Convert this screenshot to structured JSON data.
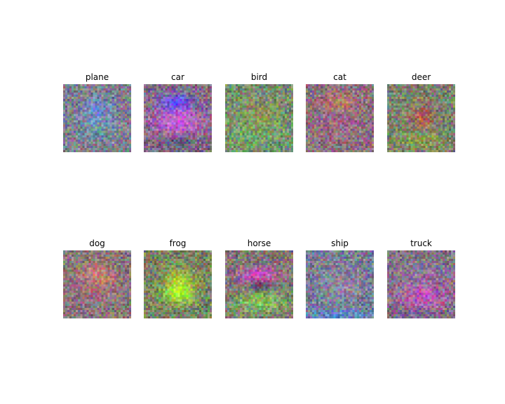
{
  "figure": {
    "panels": [
      {
        "label": "plane"
      },
      {
        "label": "car"
      },
      {
        "label": "bird"
      },
      {
        "label": "cat"
      },
      {
        "label": "deer"
      },
      {
        "label": "dog"
      },
      {
        "label": "frog"
      },
      {
        "label": "horse"
      },
      {
        "label": "ship"
      },
      {
        "label": "truck"
      }
    ]
  }
}
